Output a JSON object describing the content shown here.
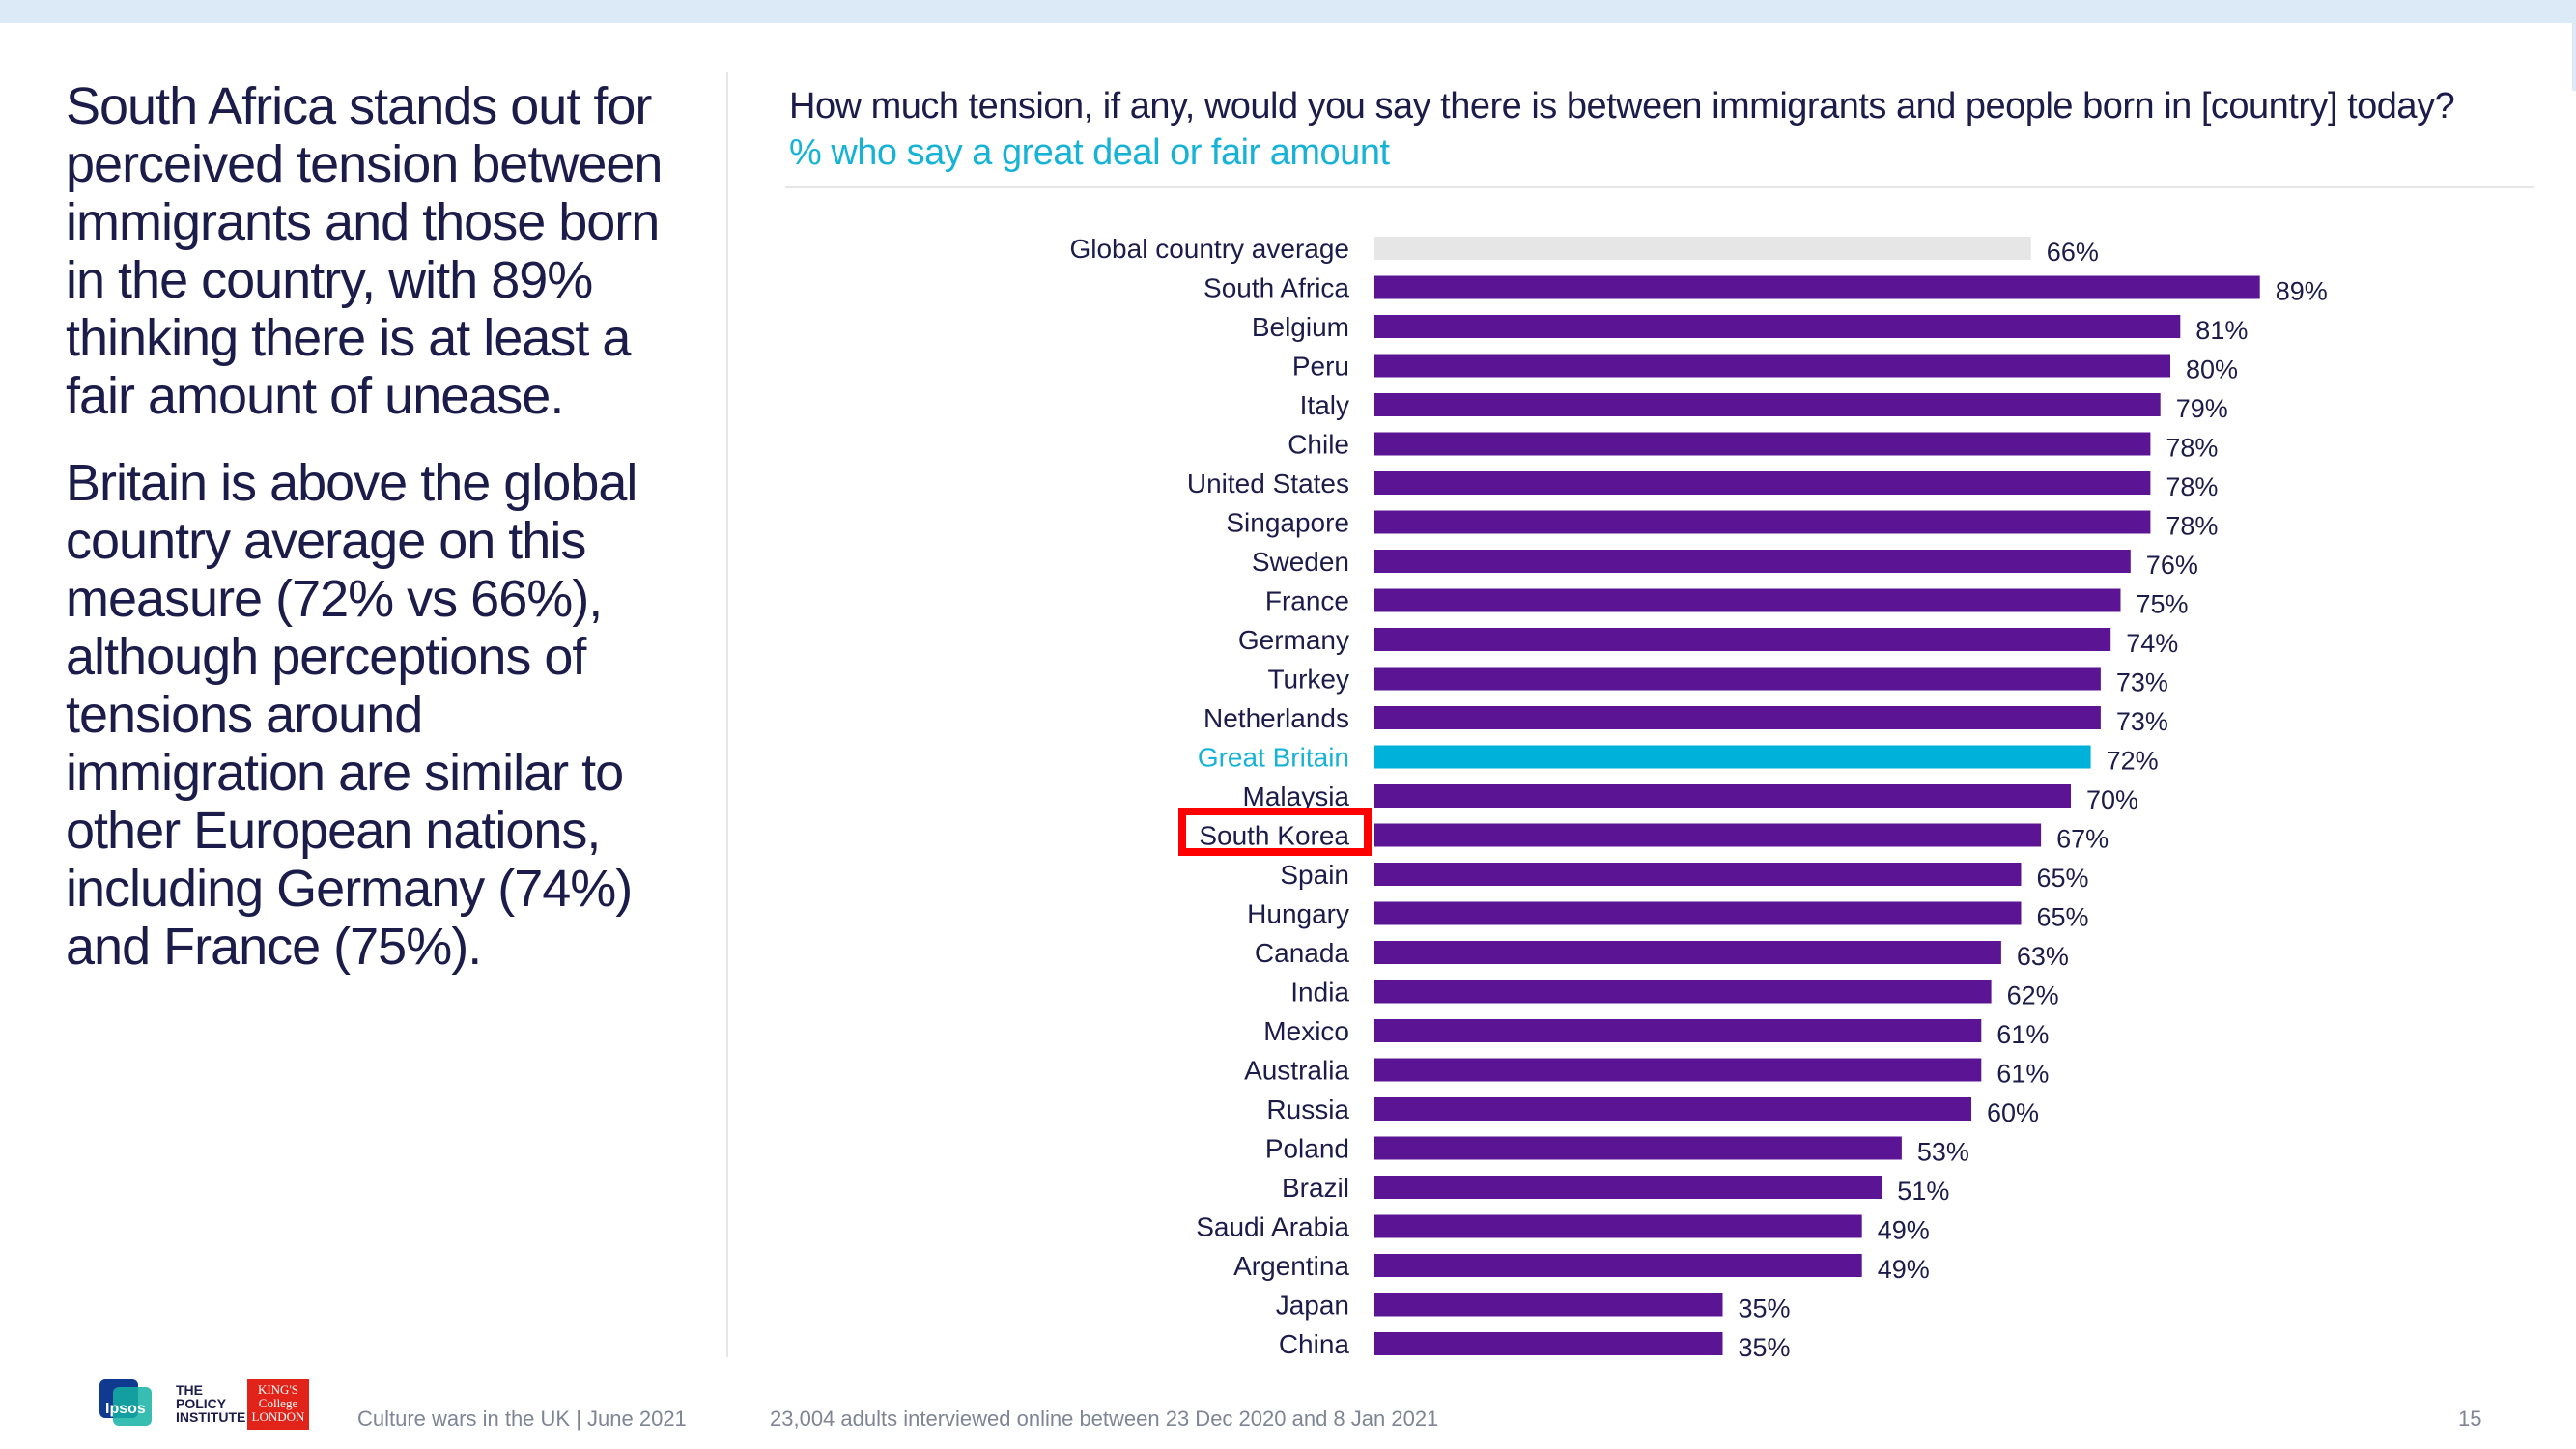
{
  "left_panel": {
    "paragraph1": "South Africa stands out for perceived tension between immigrants and those born in the country, with 89% thinking there is at least a fair amount of unease.",
    "paragraph2": "Britain is above the global country average on this measure (72% vs 66%), although perceptions of tensions around immigration are similar to other European nations, including Germany (74%) and France (75%)."
  },
  "chart_data": {
    "type": "bar",
    "orientation": "horizontal",
    "title": "How much tension, if any, would you say there is between immigrants and people born in [country] today?",
    "subtitle": "% who say a great deal or fair amount",
    "value_suffix": "%",
    "xlim": [
      0,
      100
    ],
    "grid": false,
    "highlighted_category": "South Korea",
    "categories": [
      "Global country average",
      "South Africa",
      "Belgium",
      "Peru",
      "Italy",
      "Chile",
      "United States",
      "Singapore",
      "Sweden",
      "France",
      "Germany",
      "Turkey",
      "Netherlands",
      "Great Britain",
      "Malaysia",
      "South Korea",
      "Spain",
      "Hungary",
      "Canada",
      "India",
      "Mexico",
      "Australia",
      "Russia",
      "Poland",
      "Brazil",
      "Saudi Arabia",
      "Argentina",
      "Japan",
      "China"
    ],
    "values": [
      66,
      89,
      81,
      80,
      79,
      78,
      78,
      78,
      76,
      75,
      74,
      73,
      73,
      72,
      70,
      67,
      65,
      65,
      63,
      62,
      61,
      61,
      60,
      53,
      51,
      49,
      49,
      35,
      35
    ],
    "bar_colors": {
      "default": "#5b1594",
      "Global country average": "#e6e6e6",
      "Great Britain": "#00b2d9"
    },
    "label_colors": {
      "default": "#1c1c4a",
      "Great Britain": "#17b3d6"
    }
  },
  "footer": {
    "logo_ipsos": "Ipsos",
    "logo_policy": "THE POLICY INSTITUTE",
    "logo_kings": "KING'S College LONDON",
    "publication": "Culture wars in the UK | June 2021",
    "methodology": "23,004 adults interviewed online between 23 Dec 2020 and 8 Jan 2021",
    "page_number": "15"
  },
  "colors": {
    "text_dark": "#1c1c4a",
    "accent_teal": "#17b3d6",
    "bar_purple": "#5b1594",
    "highlight_red": "#ff0000"
  }
}
